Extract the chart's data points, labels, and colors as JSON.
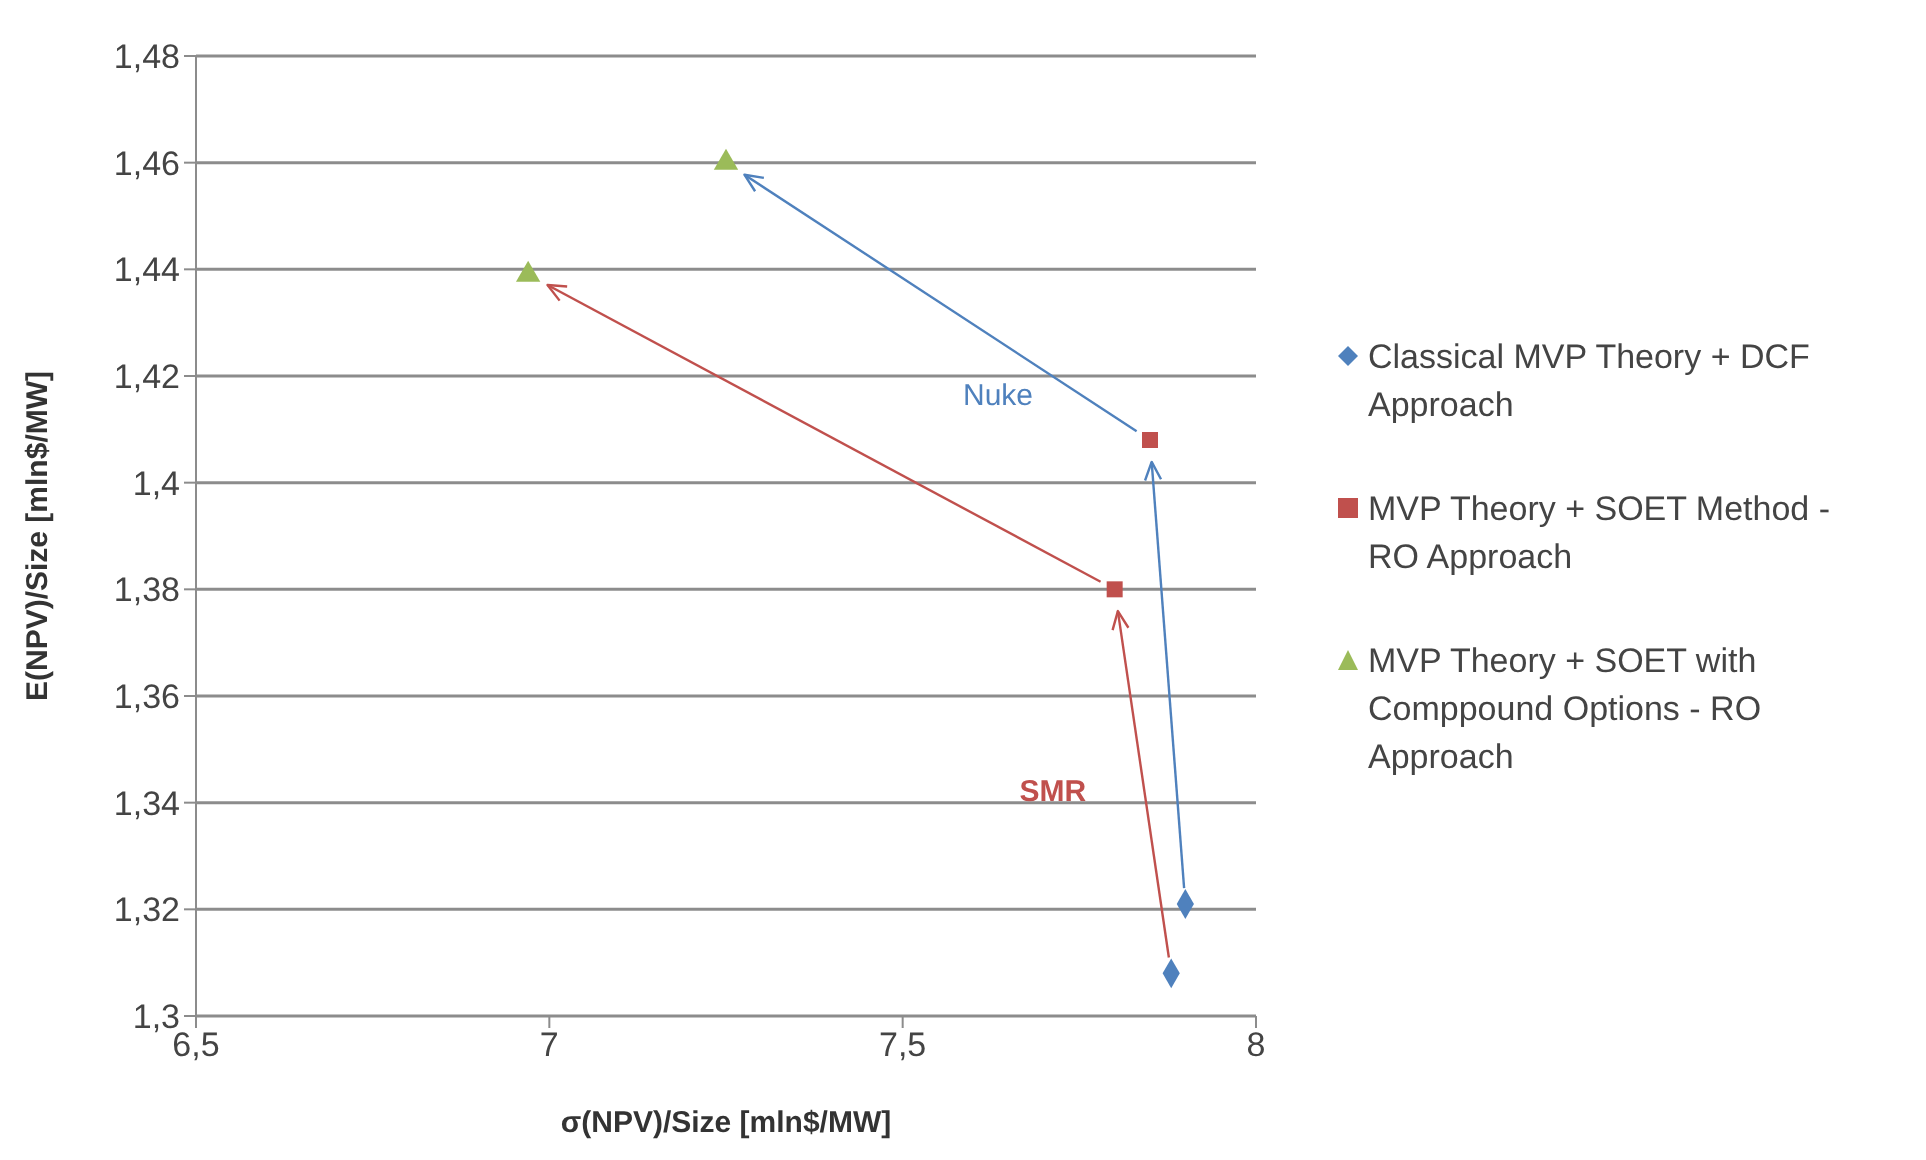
{
  "chart_data": {
    "type": "scatter",
    "xlabel": "σ(NPV)/Size   [mln$/MW]",
    "ylabel": "E(NPV)/Size   [mln$/MW]",
    "series": [
      {
        "name": "Classical MVP Theory + DCF Approach",
        "color": "#4f81bd",
        "marker": "diamond",
        "x": [
          7.88,
          7.9
        ],
        "values": [
          1.308,
          1.321
        ]
      },
      {
        "name": "MVP Theory + SOET Method - RO Approach",
        "color": "#c0504d",
        "marker": "square",
        "x": [
          7.8,
          7.85
        ],
        "values": [
          1.38,
          1.408
        ]
      },
      {
        "name": "MVP Theory + SOET with Comppound Options - RO Approach",
        "color": "#9bbb59",
        "marker": "triangle",
        "x": [
          6.97,
          7.25
        ],
        "values": [
          1.439,
          1.46
        ]
      }
    ],
    "xlim": [
      6.5,
      8
    ],
    "xticks": [
      {
        "value": 6.5,
        "label": "6,5"
      },
      7,
      {
        "value": 7.5,
        "label": "7,5"
      },
      8
    ],
    "ylim": [
      1.3,
      1.48
    ],
    "yticks": [
      {
        "value": 1.3,
        "label": "1,3"
      },
      {
        "value": 1.32,
        "label": "1,32"
      },
      {
        "value": 1.34,
        "label": "1,34"
      },
      {
        "value": 1.36,
        "label": "1,36"
      },
      {
        "value": 1.38,
        "label": "1,38"
      },
      {
        "value": 1.4,
        "label": "1,4"
      },
      {
        "value": 1.42,
        "label": "1,42"
      },
      {
        "value": 1.44,
        "label": "1,44"
      },
      {
        "value": 1.46,
        "label": "1,46"
      },
      {
        "value": 1.48,
        "label": "1,48"
      }
    ],
    "grid": "y",
    "legend": "right",
    "annotations": [
      "SMR",
      "Nuke"
    ]
  }
}
